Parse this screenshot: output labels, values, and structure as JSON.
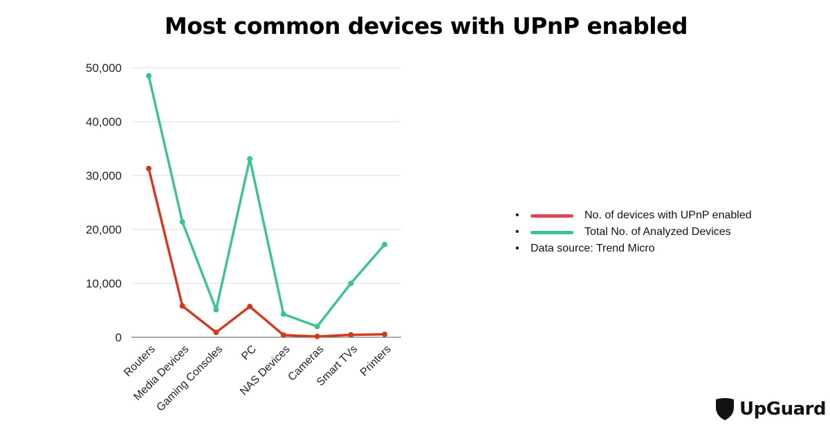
{
  "chart_data": {
    "type": "line",
    "title": "Most common devices with UPnP enabled",
    "xlabel": "",
    "ylabel": "",
    "categories": [
      "Routers",
      "Media Devices",
      "Gaming Consoles",
      "PC",
      "NAS Devices",
      "Cameras",
      "Smart TVs",
      "Printers"
    ],
    "ylim": [
      0,
      50000
    ],
    "yticks": [
      0,
      10000,
      20000,
      30000,
      40000,
      50000
    ],
    "ytick_labels": [
      "0",
      "10,000",
      "20,000",
      "30,000",
      "40,000",
      "50,000"
    ],
    "grid": true,
    "legend_position": "right",
    "series": [
      {
        "name": "No. of devices with UPnP enabled",
        "color": "#d13a1c",
        "legend_color": "#dc4a55",
        "values": [
          31300,
          5800,
          900,
          5700,
          400,
          150,
          450,
          550
        ]
      },
      {
        "name": "Total No. of Analyzed Devices",
        "color": "#3cc48f",
        "legend_color": "#3cc48f",
        "values": [
          48500,
          21400,
          5100,
          33100,
          4300,
          2000,
          10000,
          17200
        ]
      }
    ],
    "source_note": "Data source: Trend Micro"
  },
  "brand": {
    "name": "UpGuard"
  }
}
